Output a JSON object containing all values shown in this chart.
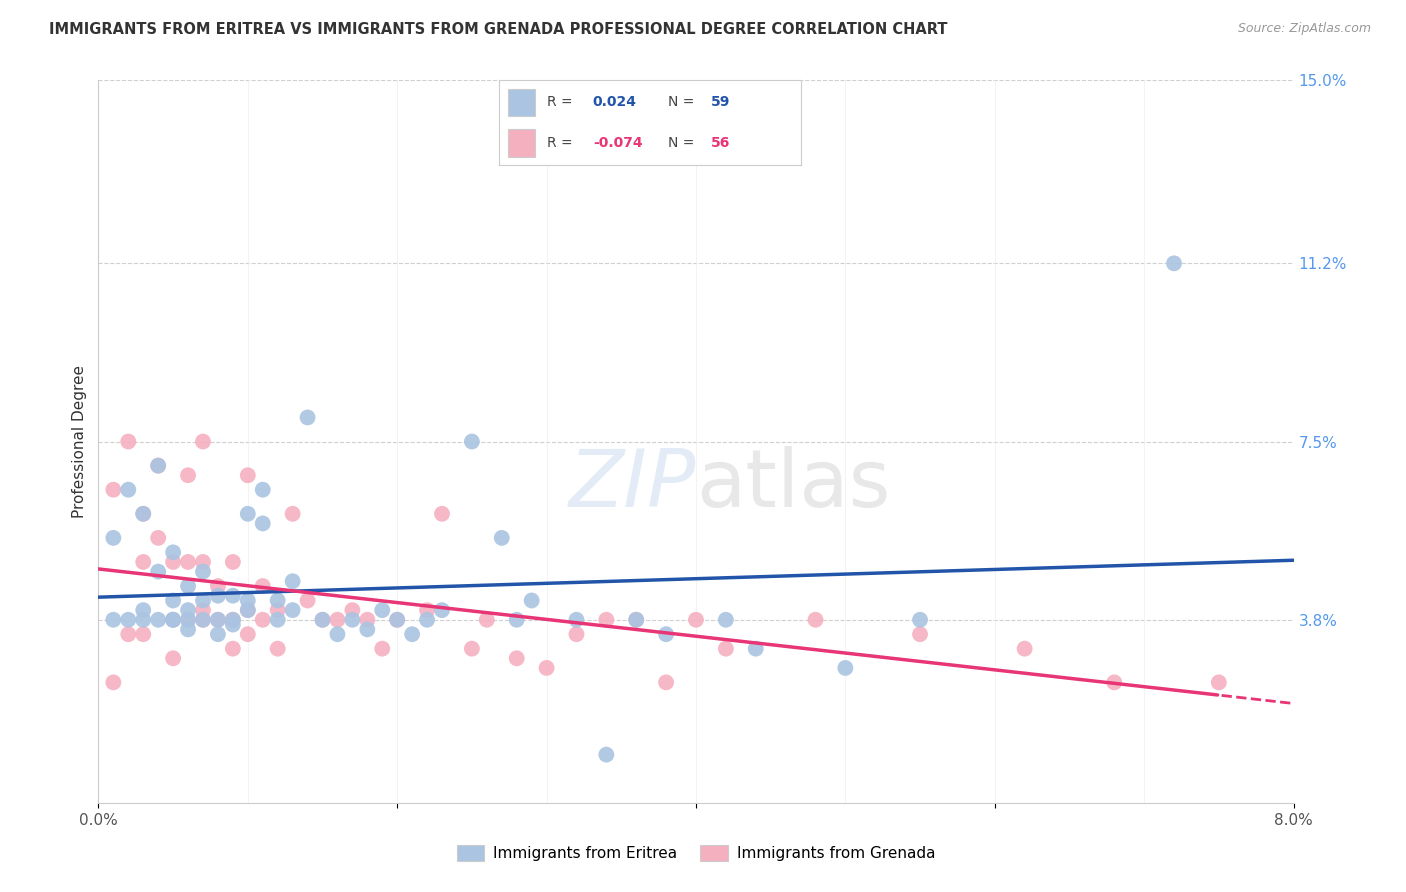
{
  "title": "IMMIGRANTS FROM ERITREA VS IMMIGRANTS FROM GRENADA PROFESSIONAL DEGREE CORRELATION CHART",
  "source": "Source: ZipAtlas.com",
  "ylabel": "Professional Degree",
  "x_min": 0.0,
  "x_max": 0.08,
  "y_min": 0.0,
  "y_max": 0.15,
  "y_tick_labels_right": [
    "3.8%",
    "7.5%",
    "11.2%",
    "15.0%"
  ],
  "y_tick_values_right": [
    0.038,
    0.075,
    0.112,
    0.15
  ],
  "color_eritrea": "#aac4e2",
  "color_grenada": "#f5b0c0",
  "color_line_eritrea": "#2255aa",
  "color_line_grenada": "#e83575",
  "color_title": "#333333",
  "color_source": "#999999",
  "color_axis_right": "#5599ee",
  "eritrea_x": [
    0.001,
    0.001,
    0.002,
    0.002,
    0.003,
    0.003,
    0.003,
    0.004,
    0.004,
    0.004,
    0.005,
    0.005,
    0.005,
    0.005,
    0.006,
    0.006,
    0.006,
    0.006,
    0.007,
    0.007,
    0.007,
    0.008,
    0.008,
    0.008,
    0.009,
    0.009,
    0.009,
    0.01,
    0.01,
    0.01,
    0.011,
    0.011,
    0.012,
    0.012,
    0.013,
    0.013,
    0.014,
    0.015,
    0.016,
    0.017,
    0.018,
    0.019,
    0.02,
    0.021,
    0.022,
    0.023,
    0.025,
    0.027,
    0.028,
    0.029,
    0.032,
    0.034,
    0.036,
    0.038,
    0.042,
    0.044,
    0.05,
    0.055,
    0.072
  ],
  "eritrea_y": [
    0.055,
    0.038,
    0.065,
    0.038,
    0.06,
    0.04,
    0.038,
    0.048,
    0.07,
    0.038,
    0.038,
    0.042,
    0.052,
    0.038,
    0.036,
    0.04,
    0.045,
    0.038,
    0.038,
    0.042,
    0.048,
    0.035,
    0.038,
    0.043,
    0.037,
    0.043,
    0.038,
    0.04,
    0.042,
    0.06,
    0.058,
    0.065,
    0.038,
    0.042,
    0.04,
    0.046,
    0.08,
    0.038,
    0.035,
    0.038,
    0.036,
    0.04,
    0.038,
    0.035,
    0.038,
    0.04,
    0.075,
    0.055,
    0.038,
    0.042,
    0.038,
    0.01,
    0.038,
    0.035,
    0.038,
    0.032,
    0.028,
    0.038,
    0.112
  ],
  "grenada_x": [
    0.001,
    0.001,
    0.002,
    0.002,
    0.003,
    0.003,
    0.003,
    0.004,
    0.004,
    0.005,
    0.005,
    0.005,
    0.006,
    0.006,
    0.006,
    0.007,
    0.007,
    0.007,
    0.007,
    0.008,
    0.008,
    0.009,
    0.009,
    0.009,
    0.01,
    0.01,
    0.01,
    0.011,
    0.011,
    0.012,
    0.012,
    0.013,
    0.014,
    0.015,
    0.016,
    0.017,
    0.018,
    0.019,
    0.02,
    0.022,
    0.023,
    0.025,
    0.026,
    0.028,
    0.03,
    0.032,
    0.034,
    0.036,
    0.038,
    0.04,
    0.042,
    0.048,
    0.055,
    0.062,
    0.068,
    0.075
  ],
  "grenada_y": [
    0.065,
    0.025,
    0.075,
    0.035,
    0.05,
    0.06,
    0.035,
    0.055,
    0.07,
    0.038,
    0.05,
    0.03,
    0.038,
    0.05,
    0.068,
    0.038,
    0.04,
    0.05,
    0.075,
    0.038,
    0.045,
    0.032,
    0.038,
    0.05,
    0.035,
    0.04,
    0.068,
    0.038,
    0.045,
    0.032,
    0.04,
    0.06,
    0.042,
    0.038,
    0.038,
    0.04,
    0.038,
    0.032,
    0.038,
    0.04,
    0.06,
    0.032,
    0.038,
    0.03,
    0.028,
    0.035,
    0.038,
    0.038,
    0.025,
    0.038,
    0.032,
    0.038,
    0.035,
    0.032,
    0.025,
    0.025
  ]
}
